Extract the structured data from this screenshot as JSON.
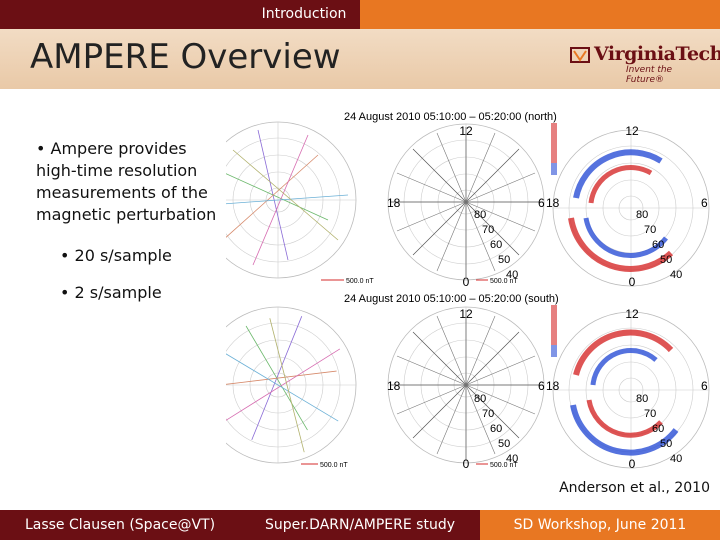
{
  "header": {
    "section": "Introduction"
  },
  "slide": {
    "title": "AMPERE Overview"
  },
  "logo": {
    "name": "VirginiaTech",
    "tagline": "Invent the Future®"
  },
  "bullets": [
    {
      "text": "• Ampere provides high-time resolution measurements of the magnetic perturbation"
    },
    {
      "text": "• 20 s/sample"
    },
    {
      "text": "• 2 s/sample"
    }
  ],
  "figure": {
    "north_header": "24 August 2010    05:10:00 – 05:20:00  (north)",
    "south_header": "24 August 2010    05:10:00 – 05:20:00  (south)",
    "scale_label": "500.0 nT",
    "mlt_labels": {
      "top": "12",
      "left": "18",
      "right": "6",
      "bottom": "0"
    },
    "lat_labels": [
      "80",
      "70",
      "60",
      "50",
      "40"
    ],
    "colors": {
      "positive": "#d62b2b",
      "negative": "#2b4fd6"
    }
  },
  "citation": "Anderson et al., 2010",
  "footer": {
    "author": "Lasse Clausen (Space@VT)",
    "study": "Super.DARN/AMPERE study",
    "event": "SD Workshop, June 2011"
  }
}
